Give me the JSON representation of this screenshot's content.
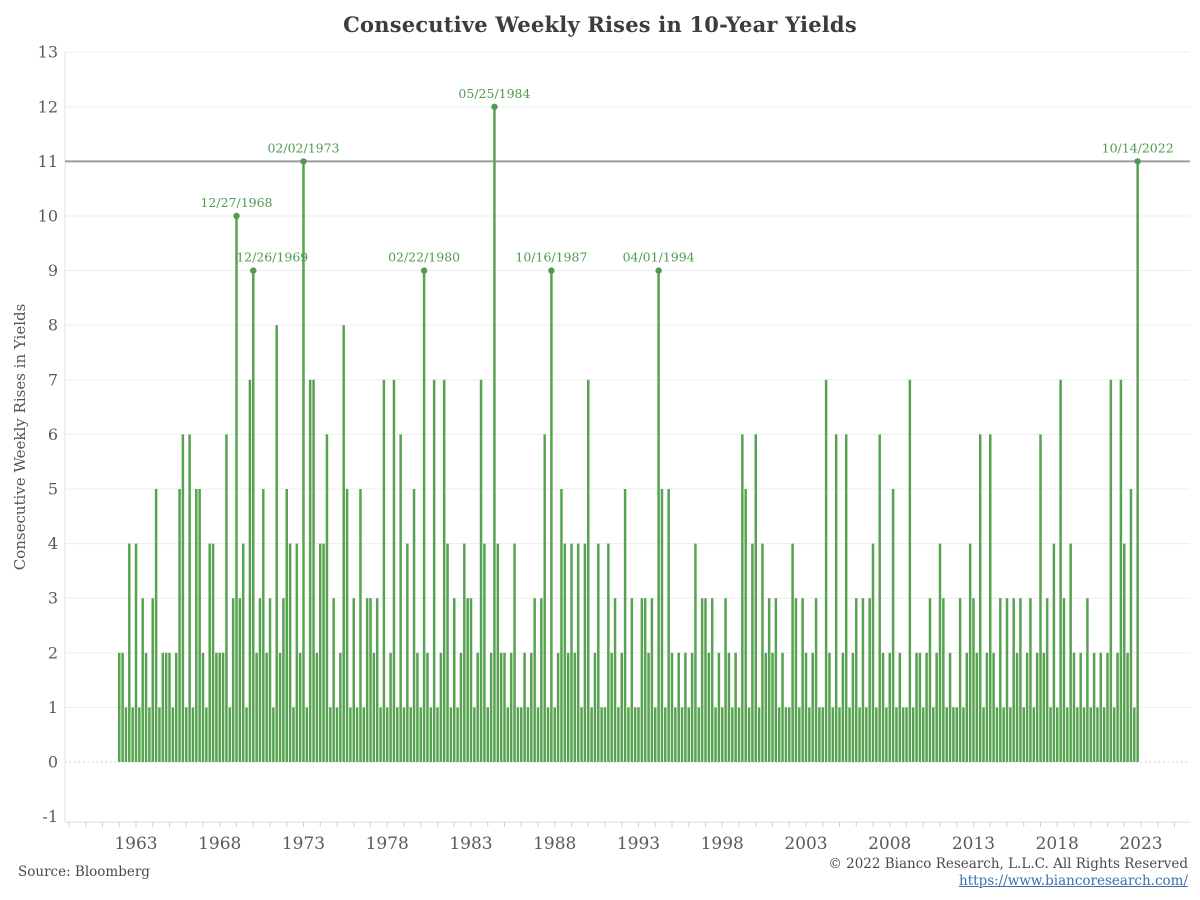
{
  "title": "Consecutive Weekly Rises in 10-Year Yields",
  "footer": {
    "source": "Source: Bloomberg",
    "copyright": "© 2022 Bianco Research, L.L.C. All Rights Reserved",
    "link": "https://www.biancoresearch.com/"
  },
  "chart_data": {
    "type": "bar",
    "title": "Consecutive Weekly Rises in 10-Year Yields",
    "xlabel": "",
    "ylabel": "Consecutive Weekly Rises in Yields",
    "ylim": [
      -1,
      13
    ],
    "xlim": [
      1961.5,
      2024.5
    ],
    "grid": "horizontal",
    "legend": "none",
    "y_ticks": [
      -1,
      0,
      1,
      2,
      3,
      4,
      5,
      6,
      7,
      8,
      9,
      10,
      11,
      12,
      13
    ],
    "x_ticks": [
      1963,
      1968,
      1973,
      1978,
      1983,
      1988,
      1993,
      1998,
      2003,
      2008,
      2013,
      2018,
      2023
    ],
    "bar_color": "#58A351",
    "annotation_color": "#4E9B51",
    "reference_line": {
      "value": 11,
      "color": "#9C9C9C"
    },
    "zero_line_style": "dotted",
    "annotations": [
      {
        "label": "12/27/1968",
        "x": 1969.0,
        "y": 10,
        "dx": 0
      },
      {
        "label": "12/26/1969",
        "x": 1970.0,
        "y": 9,
        "dx": 19
      },
      {
        "label": "02/02/1973",
        "x": 1973.0,
        "y": 11,
        "dx": 0
      },
      {
        "label": "02/22/1980",
        "x": 1980.2,
        "y": 9,
        "dx": 0
      },
      {
        "label": "05/25/1984",
        "x": 1984.4,
        "y": 12,
        "dx": 0
      },
      {
        "label": "10/16/1987",
        "x": 1987.8,
        "y": 9,
        "dx": 0
      },
      {
        "label": "04/01/1994",
        "x": 1994.2,
        "y": 9,
        "dx": 0
      },
      {
        "label": "10/14/2022",
        "x": 2022.8,
        "y": 11,
        "dx": 0
      }
    ],
    "bars": {
      "note": "Streak lengths of consecutive weekly rises; 5 sampled streak events per year at 0.2-year spacing, estimated from pixels.",
      "start_year": 1962,
      "end_year": 2022,
      "slots_per_year": 5,
      "values_by_year": {
        "1962": [
          2,
          2,
          1,
          4,
          1
        ],
        "1963": [
          4,
          1,
          3,
          2,
          1
        ],
        "1964": [
          3,
          5,
          1,
          2,
          2
        ],
        "1965": [
          2,
          1,
          2,
          5,
          6
        ],
        "1966": [
          1,
          6,
          1,
          5,
          5
        ],
        "1967": [
          2,
          1,
          4,
          4,
          2
        ],
        "1968": [
          2,
          2,
          6,
          1,
          3
        ],
        "1969": [
          10,
          3,
          4,
          1,
          7
        ],
        "1970": [
          9,
          2,
          3,
          5,
          2
        ],
        "1971": [
          3,
          1,
          8,
          2,
          3
        ],
        "1972": [
          5,
          4,
          1,
          4,
          2
        ],
        "1973": [
          11,
          1,
          7,
          7,
          2
        ],
        "1974": [
          4,
          4,
          6,
          1,
          3
        ],
        "1975": [
          1,
          2,
          8,
          5,
          1
        ],
        "1976": [
          3,
          1,
          5,
          1,
          3
        ],
        "1977": [
          3,
          2,
          3,
          1,
          7
        ],
        "1978": [
          1,
          2,
          7,
          1,
          6
        ],
        "1979": [
          1,
          4,
          1,
          5,
          2
        ],
        "1980": [
          1,
          9,
          2,
          1,
          7
        ],
        "1981": [
          1,
          2,
          7,
          4,
          1
        ],
        "1982": [
          3,
          1,
          2,
          4,
          3
        ],
        "1983": [
          3,
          1,
          2,
          7,
          4
        ],
        "1984": [
          1,
          2,
          12,
          4,
          2
        ],
        "1985": [
          2,
          1,
          2,
          4,
          1
        ],
        "1986": [
          1,
          2,
          1,
          2,
          3
        ],
        "1987": [
          1,
          3,
          6,
          1,
          9
        ],
        "1988": [
          1,
          2,
          5,
          4,
          2
        ],
        "1989": [
          4,
          2,
          4,
          1,
          4
        ],
        "1990": [
          7,
          1,
          2,
          4,
          1
        ],
        "1991": [
          1,
          4,
          2,
          3,
          1
        ],
        "1992": [
          2,
          5,
          1,
          3,
          1
        ],
        "1993": [
          1,
          3,
          3,
          2,
          3
        ],
        "1994": [
          1,
          9,
          5,
          1,
          5
        ],
        "1995": [
          2,
          1,
          2,
          1,
          2
        ],
        "1996": [
          1,
          2,
          4,
          1,
          3
        ],
        "1997": [
          3,
          2,
          3,
          1,
          2
        ],
        "1998": [
          1,
          3,
          2,
          1,
          2
        ],
        "1999": [
          1,
          6,
          5,
          1,
          4
        ],
        "2000": [
          6,
          1,
          4,
          2,
          3
        ],
        "2001": [
          2,
          3,
          1,
          2,
          1
        ],
        "2002": [
          1,
          4,
          3,
          1,
          3
        ],
        "2003": [
          2,
          1,
          2,
          3,
          1
        ],
        "2004": [
          1,
          7,
          2,
          1,
          6
        ],
        "2005": [
          1,
          2,
          6,
          1,
          2
        ],
        "2006": [
          3,
          1,
          3,
          1,
          3
        ],
        "2007": [
          4,
          1,
          6,
          2,
          1
        ],
        "2008": [
          2,
          5,
          1,
          2,
          1
        ],
        "2009": [
          1,
          7,
          1,
          2,
          2
        ],
        "2010": [
          1,
          2,
          3,
          1,
          2
        ],
        "2011": [
          4,
          3,
          1,
          2,
          1
        ],
        "2012": [
          1,
          3,
          1,
          2,
          4
        ],
        "2013": [
          3,
          2,
          6,
          1,
          2
        ],
        "2014": [
          6,
          2,
          1,
          3,
          1
        ],
        "2015": [
          3,
          1,
          3,
          2,
          3
        ],
        "2016": [
          1,
          2,
          3,
          1,
          2
        ],
        "2017": [
          6,
          2,
          3,
          1,
          4
        ],
        "2018": [
          1,
          7,
          3,
          1,
          4
        ],
        "2019": [
          2,
          1,
          2,
          1,
          3
        ],
        "2020": [
          1,
          2,
          1,
          2,
          1
        ],
        "2021": [
          2,
          7,
          1,
          2,
          7
        ],
        "2022": [
          4,
          2,
          5,
          1,
          11
        ]
      }
    }
  }
}
